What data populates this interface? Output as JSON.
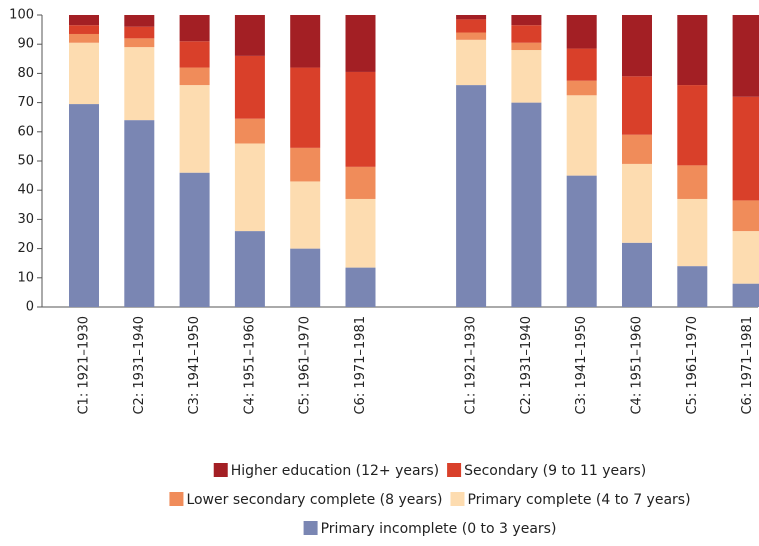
{
  "chart_data": {
    "type": "stacked_bar",
    "categories": [
      "C1: 1921–1930",
      "C2: 1931–1940",
      "C3: 1941–1950",
      "C4: 1951–1960",
      "C5: 1961–1970",
      "C6: 1971–1981",
      null,
      "C1: 1921–1930",
      "C2: 1931–1940",
      "C3: 1941–1950",
      "C4: 1951–1960",
      "C5: 1961–1970",
      "C6: 1971–1981"
    ],
    "series": [
      {
        "name": "Primary incomplete (0 to 3 years)",
        "color": "#7a86b3",
        "values": [
          69.5,
          64,
          46,
          26,
          20,
          13.5,
          null,
          76,
          70,
          45,
          22,
          14,
          8
        ]
      },
      {
        "name": "Primary complete (4 to 7 years)",
        "color": "#fddcb0",
        "values": [
          21,
          25,
          30,
          30,
          23,
          23.5,
          null,
          15.5,
          18,
          27.5,
          27,
          23,
          18
        ]
      },
      {
        "name": "Lower secondary complete (8 years)",
        "color": "#f08c5a",
        "values": [
          3,
          3,
          6,
          8.5,
          11.5,
          11,
          null,
          2.5,
          2.5,
          5,
          10,
          11.5,
          10.5
        ]
      },
      {
        "name": "Secondary (9 to 11 years)",
        "color": "#d9402a",
        "values": [
          3,
          4,
          9,
          21.5,
          27.5,
          32.5,
          null,
          4.5,
          6,
          11,
          20,
          27.5,
          35.5
        ]
      },
      {
        "name": "Higher education (12+ years)",
        "color": "#a31f24",
        "values": [
          3.5,
          4,
          9,
          14,
          18,
          19.5,
          null,
          1.5,
          3.5,
          11.5,
          21,
          24,
          28
        ]
      }
    ],
    "ylim": [
      0,
      100
    ],
    "yticks": [
      0,
      10,
      20,
      30,
      40,
      50,
      60,
      70,
      80,
      90,
      100
    ],
    "grid": false
  }
}
